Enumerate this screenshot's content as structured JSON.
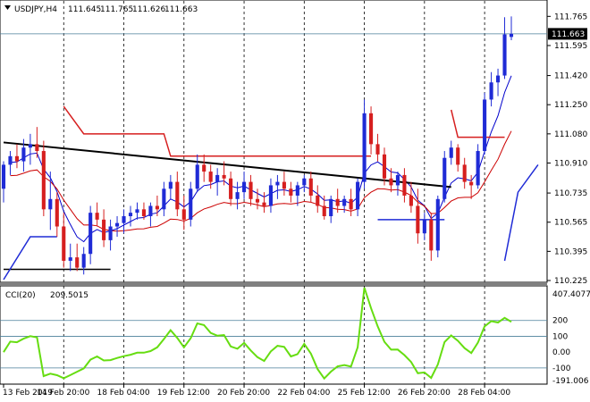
{
  "header": {
    "symbol": "USDJPY,H4",
    "open": "111.645",
    "high": "111.765",
    "low": "111.626",
    "close": "111.663"
  },
  "colors": {
    "bull": "#1f2bd6",
    "bear": "#d61f1f",
    "ma_blue": "#0000cc",
    "ma_red": "#cc0000",
    "trend_black": "#000000",
    "cci": "#66dd11",
    "ref_line": "#4a7f9a",
    "current_price_bg": "#000000"
  },
  "chart_data": [
    {
      "type": "candlestick",
      "ylim": [
        110.225,
        111.85
      ],
      "y_ticks": [
        "111.765",
        "111.595",
        "111.420",
        "111.250",
        "111.080",
        "110.910",
        "110.735",
        "110.565",
        "110.395",
        "110.225"
      ],
      "current_price_label": "111.663",
      "x_tick_labels": [
        "13 Feb 2019",
        "14 Feb 20:00",
        "18 Feb 04:00",
        "19 Feb 12:00",
        "20 Feb 20:00",
        "22 Feb 04:00",
        "25 Feb 12:00",
        "26 Feb 20:00",
        "28 Feb 04:00"
      ],
      "candles": [
        [
          110.76,
          110.92,
          110.68,
          110.9
        ],
        [
          110.9,
          110.98,
          110.84,
          110.95
        ],
        [
          110.95,
          111.02,
          110.88,
          110.92
        ],
        [
          110.92,
          111.05,
          110.86,
          111.0
        ],
        [
          111.0,
          111.08,
          110.9,
          111.02
        ],
        [
          111.02,
          111.12,
          110.94,
          110.98
        ],
        [
          110.98,
          111.04,
          110.6,
          110.64
        ],
        [
          110.64,
          110.86,
          110.52,
          110.7
        ],
        [
          110.7,
          110.74,
          110.48,
          110.54
        ],
        [
          110.54,
          110.62,
          110.3,
          110.34
        ],
        [
          110.34,
          110.44,
          110.28,
          110.36
        ],
        [
          110.36,
          110.44,
          110.28,
          110.3
        ],
        [
          110.3,
          110.42,
          110.26,
          110.38
        ],
        [
          110.38,
          110.66,
          110.32,
          110.62
        ],
        [
          110.62,
          110.68,
          110.54,
          110.58
        ],
        [
          110.58,
          110.64,
          110.42,
          110.46
        ],
        [
          110.46,
          110.58,
          110.4,
          110.54
        ],
        [
          110.54,
          110.6,
          110.48,
          110.56
        ],
        [
          110.56,
          110.64,
          110.5,
          110.6
        ],
        [
          110.6,
          110.66,
          110.54,
          110.62
        ],
        [
          110.62,
          110.68,
          110.58,
          110.64
        ],
        [
          110.64,
          110.68,
          110.58,
          110.6
        ],
        [
          110.6,
          110.68,
          110.54,
          110.66
        ],
        [
          110.66,
          110.72,
          110.6,
          110.64
        ],
        [
          110.64,
          110.8,
          110.6,
          110.76
        ],
        [
          110.76,
          110.84,
          110.7,
          110.8
        ],
        [
          110.8,
          110.86,
          110.6,
          110.64
        ],
        [
          110.64,
          110.72,
          110.52,
          110.58
        ],
        [
          110.58,
          110.8,
          110.54,
          110.76
        ],
        [
          110.76,
          110.96,
          110.74,
          110.9
        ],
        [
          110.9,
          110.96,
          110.8,
          110.86
        ],
        [
          110.86,
          110.9,
          110.76,
          110.8
        ],
        [
          110.8,
          110.88,
          110.72,
          110.84
        ],
        [
          110.84,
          110.92,
          110.78,
          110.82
        ],
        [
          110.82,
          110.86,
          110.66,
          110.7
        ],
        [
          110.7,
          110.8,
          110.64,
          110.74
        ],
        [
          110.74,
          110.86,
          110.7,
          110.8
        ],
        [
          110.8,
          110.84,
          110.66,
          110.7
        ],
        [
          110.7,
          110.76,
          110.64,
          110.68
        ],
        [
          110.68,
          110.74,
          110.62,
          110.66
        ],
        [
          110.66,
          110.82,
          110.62,
          110.78
        ],
        [
          110.78,
          110.84,
          110.7,
          110.8
        ],
        [
          110.8,
          110.86,
          110.72,
          110.76
        ],
        [
          110.76,
          110.8,
          110.68,
          110.72
        ],
        [
          110.72,
          110.8,
          110.66,
          110.78
        ],
        [
          110.78,
          110.84,
          110.74,
          110.82
        ],
        [
          110.82,
          110.86,
          110.68,
          110.72
        ],
        [
          110.72,
          110.78,
          110.62,
          110.66
        ],
        [
          110.66,
          110.72,
          110.58,
          110.6
        ],
        [
          110.6,
          110.72,
          110.56,
          110.7
        ],
        [
          110.7,
          110.76,
          110.62,
          110.66
        ],
        [
          110.66,
          110.72,
          110.62,
          110.7
        ],
        [
          110.7,
          110.76,
          110.6,
          110.64
        ],
        [
          110.64,
          110.82,
          110.6,
          110.8
        ],
        [
          110.8,
          111.28,
          110.76,
          111.2
        ],
        [
          111.2,
          111.24,
          110.96,
          111.02
        ],
        [
          111.02,
          111.08,
          110.92,
          110.96
        ],
        [
          110.96,
          111.0,
          110.78,
          110.82
        ],
        [
          110.82,
          110.88,
          110.74,
          110.78
        ],
        [
          110.78,
          110.86,
          110.72,
          110.84
        ],
        [
          110.84,
          110.88,
          110.68,
          110.72
        ],
        [
          110.72,
          110.8,
          110.62,
          110.66
        ],
        [
          110.66,
          110.76,
          110.44,
          110.5
        ],
        [
          110.5,
          110.62,
          110.46,
          110.58
        ],
        [
          110.58,
          110.62,
          110.34,
          110.4
        ],
        [
          110.4,
          110.72,
          110.36,
          110.7
        ],
        [
          110.7,
          110.98,
          110.68,
          110.94
        ],
        [
          110.94,
          111.04,
          110.9,
          111.0
        ],
        [
          111.0,
          111.02,
          110.86,
          110.9
        ],
        [
          110.9,
          110.94,
          110.76,
          110.8
        ],
        [
          110.8,
          110.84,
          110.7,
          110.78
        ],
        [
          110.78,
          111.02,
          110.76,
          110.98
        ],
        [
          110.98,
          111.32,
          110.96,
          111.28
        ],
        [
          111.28,
          111.44,
          111.24,
          111.38
        ],
        [
          111.38,
          111.46,
          111.3,
          111.42
        ],
        [
          111.42,
          111.76,
          111.4,
          111.66
        ],
        [
          111.645,
          111.765,
          111.626,
          111.663
        ]
      ]
    },
    {
      "type": "line",
      "name": "CCI(20)",
      "value_label": "209.5015",
      "ylim": [
        -191.0,
        407.4077
      ],
      "y_tick_labels": [
        "407.4077",
        "200",
        "100",
        "0.00",
        "-100",
        "-191.006"
      ],
      "levels": [
        200,
        100,
        -100
      ]
    }
  ]
}
